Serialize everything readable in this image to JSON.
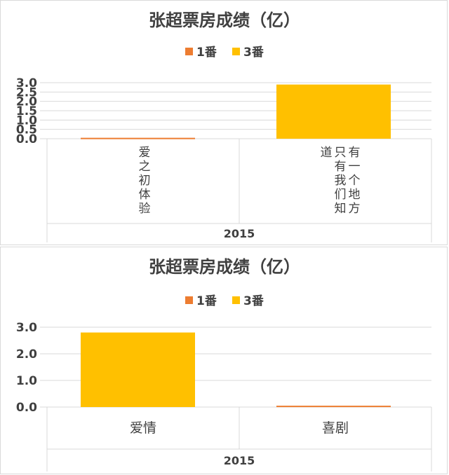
{
  "charts": [
    {
      "title": "张超票房成绩（亿）",
      "legend": [
        {
          "label": "1番",
          "color": "#ed7d31"
        },
        {
          "label": "3番",
          "color": "#ffc000"
        }
      ],
      "yticks": [
        "0.0",
        "0.5",
        "1.0",
        "1.5",
        "2.0",
        "2.5",
        "3.0"
      ],
      "categories": [
        "爱之初体验",
        "有一个地方只有我们知道"
      ],
      "group_label": "2015"
    },
    {
      "title": "张超票房成绩（亿）",
      "legend": [
        {
          "label": "1番",
          "color": "#ed7d31"
        },
        {
          "label": "3番",
          "color": "#ffc000"
        }
      ],
      "yticks": [
        "0.0",
        "1.0",
        "2.0",
        "3.0"
      ],
      "categories": [
        "爱情",
        "喜剧"
      ],
      "group_label": "2015"
    }
  ],
  "chart_data": [
    {
      "type": "bar",
      "title": "张超票房成绩（亿）",
      "categories": [
        "爱之初体验",
        "有一个地方只有我们知道"
      ],
      "group": "2015",
      "series": [
        {
          "name": "1番",
          "values": [
            0.05,
            0
          ],
          "color": "#ed7d31"
        },
        {
          "name": "3番",
          "values": [
            0,
            2.9
          ],
          "color": "#ffc000"
        }
      ],
      "ylim": [
        0,
        3.0
      ],
      "grid": true,
      "legend": "top"
    },
    {
      "type": "bar",
      "title": "张超票房成绩（亿）",
      "categories": [
        "爱情",
        "喜剧"
      ],
      "group": "2015",
      "series": [
        {
          "name": "1番",
          "values": [
            0,
            0.05
          ],
          "color": "#ed7d31"
        },
        {
          "name": "3番",
          "values": [
            2.8,
            0
          ],
          "color": "#ffc000"
        }
      ],
      "ylim": [
        0,
        3.0
      ],
      "grid": true,
      "legend": "top"
    }
  ]
}
